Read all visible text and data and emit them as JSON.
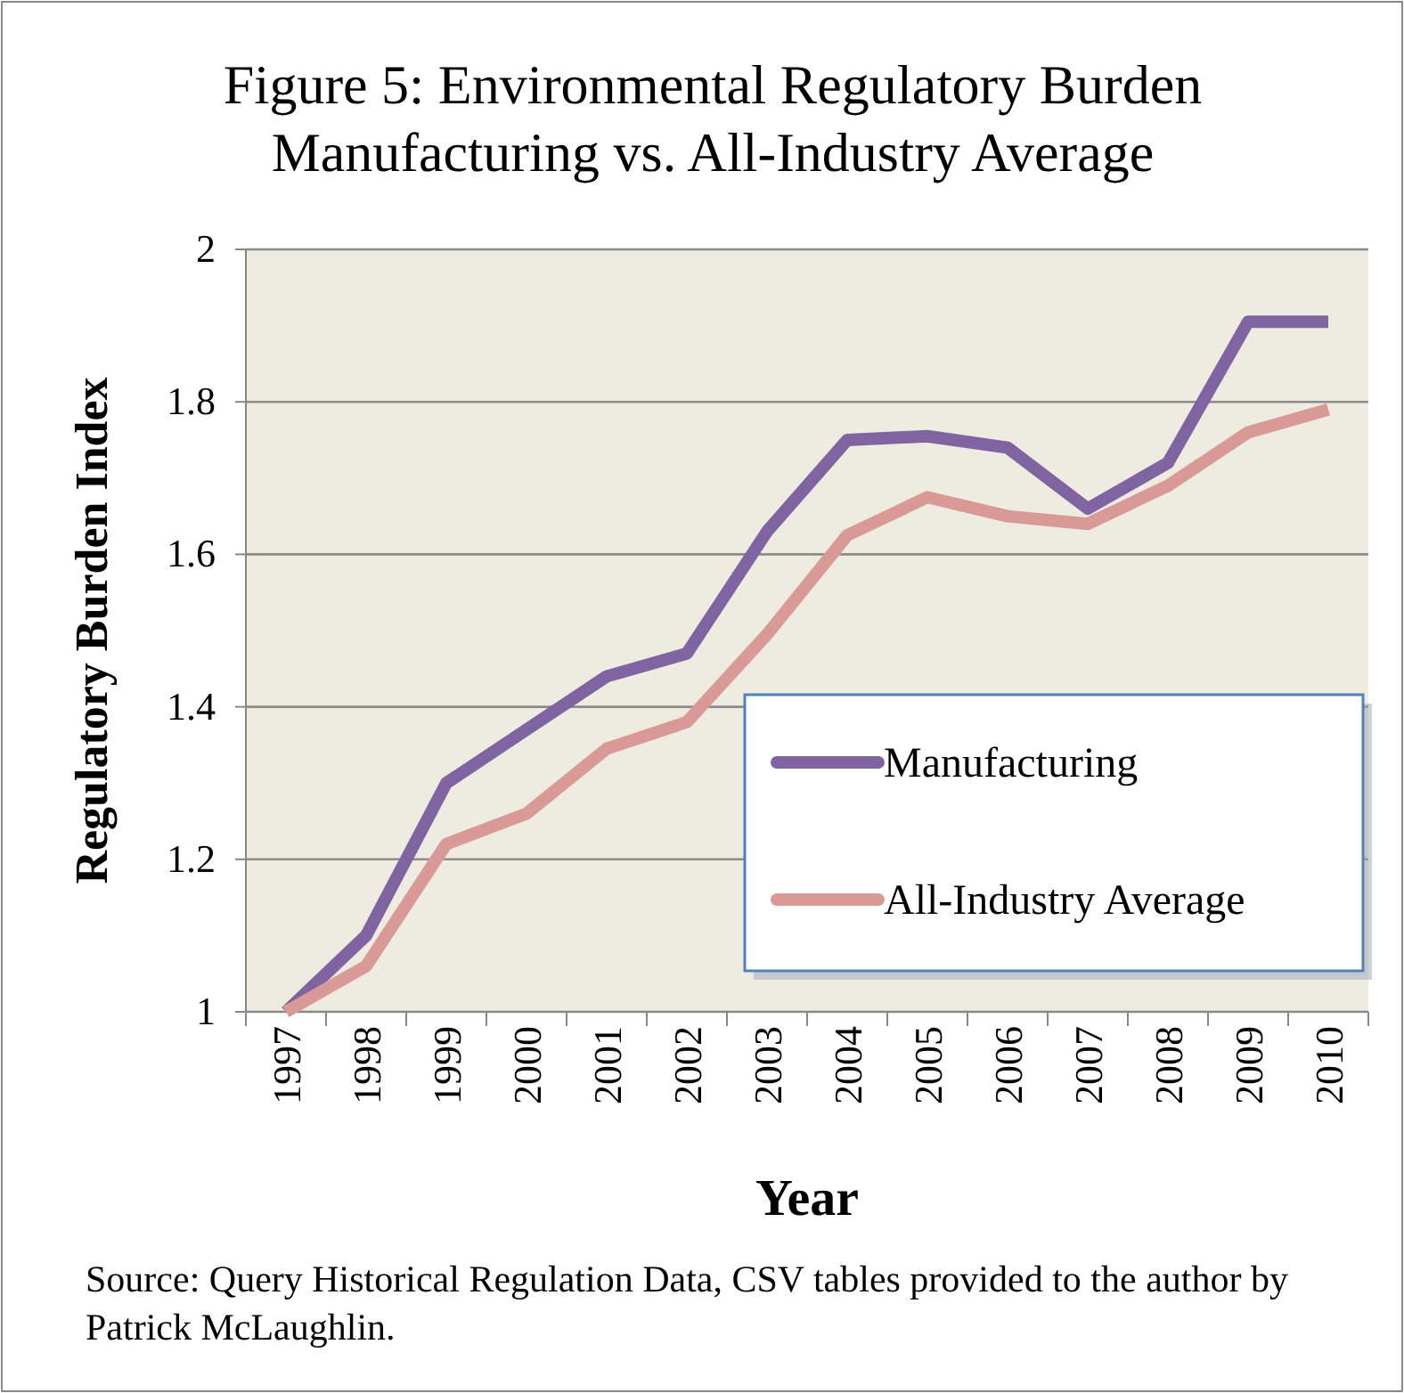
{
  "chart_data": {
    "type": "line",
    "title": "Figure 5: Environmental Regulatory Burden\nManufacturing vs. All-Industry Average",
    "xlabel": "Year",
    "ylabel": "Regulatory Burden Index",
    "categories": [
      "1997",
      "1998",
      "1999",
      "2000",
      "2001",
      "2002",
      "2003",
      "2004",
      "2005",
      "2006",
      "2007",
      "2008",
      "2009",
      "2010"
    ],
    "series": [
      {
        "name": "Manufacturing",
        "color": "#8064a2",
        "values": [
          1.0,
          1.1,
          1.3,
          1.37,
          1.44,
          1.47,
          1.63,
          1.75,
          1.755,
          1.74,
          1.66,
          1.72,
          1.905,
          1.905
        ]
      },
      {
        "name": "All-Industry Average",
        "color": "#d99a97",
        "values": [
          1.0,
          1.06,
          1.22,
          1.26,
          1.345,
          1.38,
          1.495,
          1.625,
          1.675,
          1.65,
          1.64,
          1.69,
          1.76,
          1.79
        ]
      }
    ],
    "ylim": [
      1,
      2
    ],
    "yticks": [
      1,
      1.2,
      1.4,
      1.6,
      1.8,
      2
    ],
    "grid": "y",
    "legend": "bottom right",
    "marker": "none",
    "line_style": "solid",
    "annotations": [
      "Source: Query Historical Regulation Data, CSV tables provided to the author by Patrick McLaughlin."
    ]
  }
}
